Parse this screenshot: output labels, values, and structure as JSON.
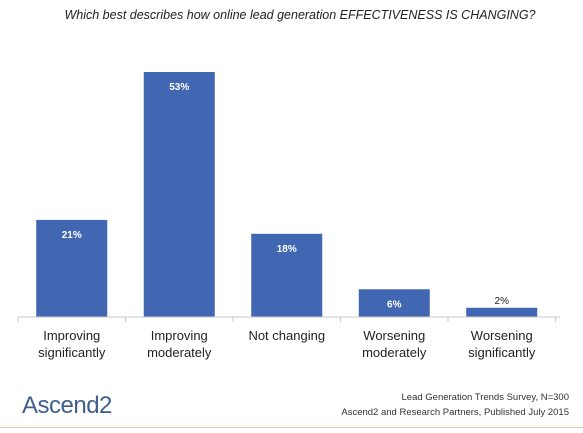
{
  "chart_data": {
    "type": "bar",
    "title": "Which best describes how online lead generation EFFECTIVENESS IS CHANGING?",
    "categories": [
      [
        "Improving",
        "significantly"
      ],
      [
        "Improving",
        "moderately"
      ],
      [
        "Not changing"
      ],
      [
        "Worsening",
        "moderately"
      ],
      [
        "Worsening",
        "significantly"
      ]
    ],
    "values": [
      21,
      53,
      18,
      6,
      2
    ],
    "data_labels": [
      "21%",
      "53%",
      "18%",
      "6%",
      "2%"
    ],
    "value_unit": "%",
    "ylim": [
      0,
      53
    ],
    "grid": false,
    "legend": "none",
    "bar_color": "#4267b2"
  },
  "footer": {
    "source_line1": "Lead Generation Trends Survey, N=300",
    "source_line2": "Ascend2 and Research Partners, Published July 2015",
    "logo_text": "Ascend2",
    "logo_color": "#3f5f8c"
  }
}
